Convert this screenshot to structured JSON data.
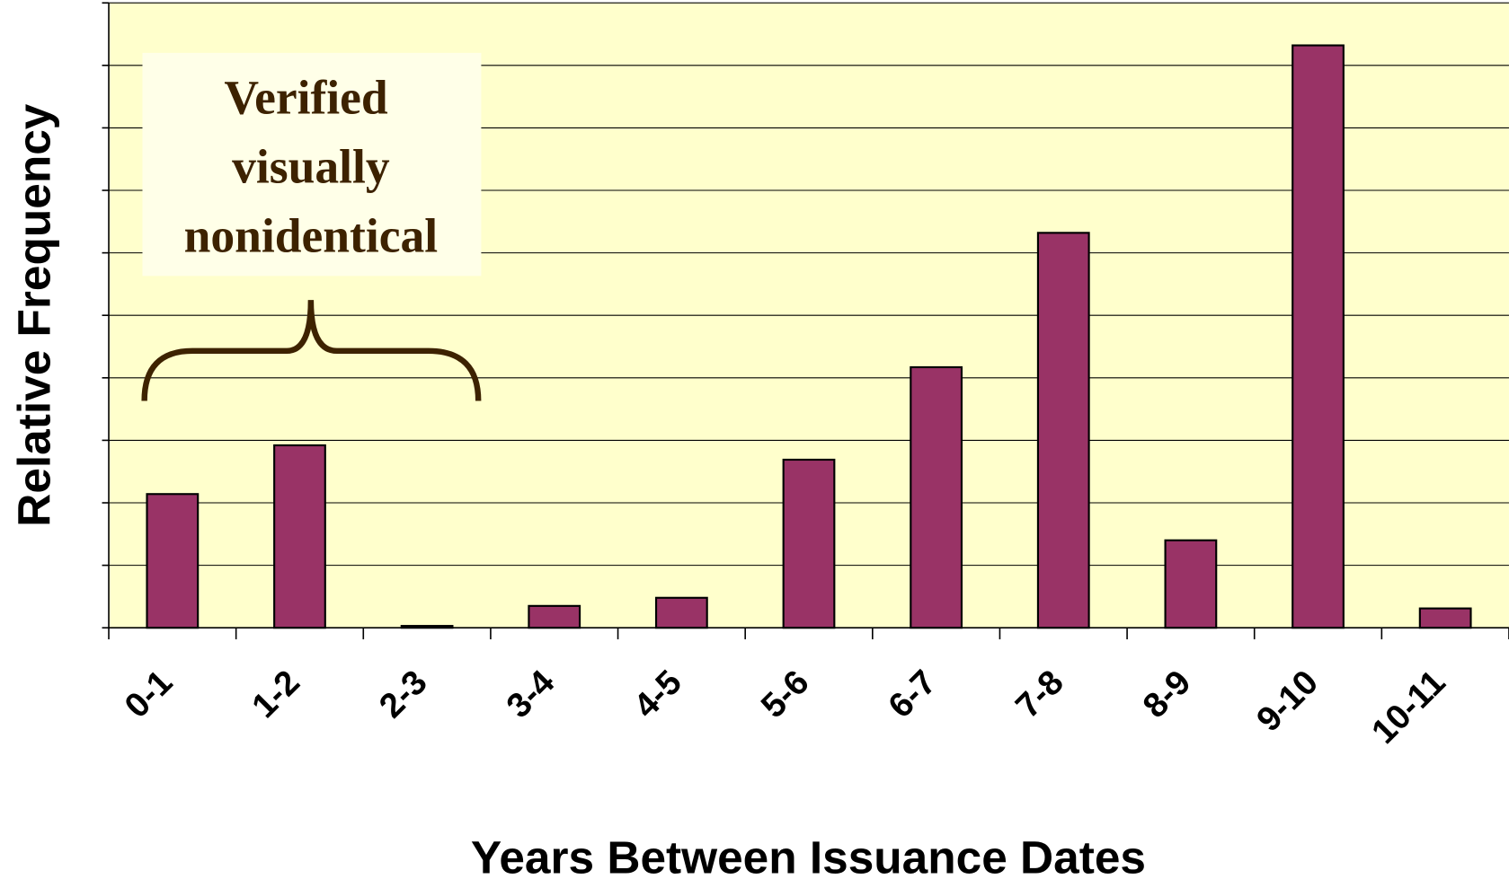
{
  "chart_data": {
    "type": "bar",
    "x_label": "Years Between Issuance Dates",
    "y_label": "Relative Frequency",
    "annotation": [
      "Verified",
      "visually",
      "nonidentical"
    ],
    "categories": [
      "0-1",
      "1-2",
      "2-3",
      "3-4",
      "4-5",
      "5-6",
      "6-7",
      "7-8",
      "8-9",
      "9-10",
      "10-11"
    ],
    "values": [
      2.14,
      2.92,
      0.03,
      0.35,
      0.48,
      2.69,
      4.17,
      6.32,
      1.4,
      9.32,
      0.31
    ],
    "color": "#993366",
    "ylim": [
      0,
      10
    ],
    "yticks": [
      0,
      1,
      2,
      3,
      4,
      5,
      6,
      7,
      8,
      9,
      10
    ],
    "grid": true
  }
}
